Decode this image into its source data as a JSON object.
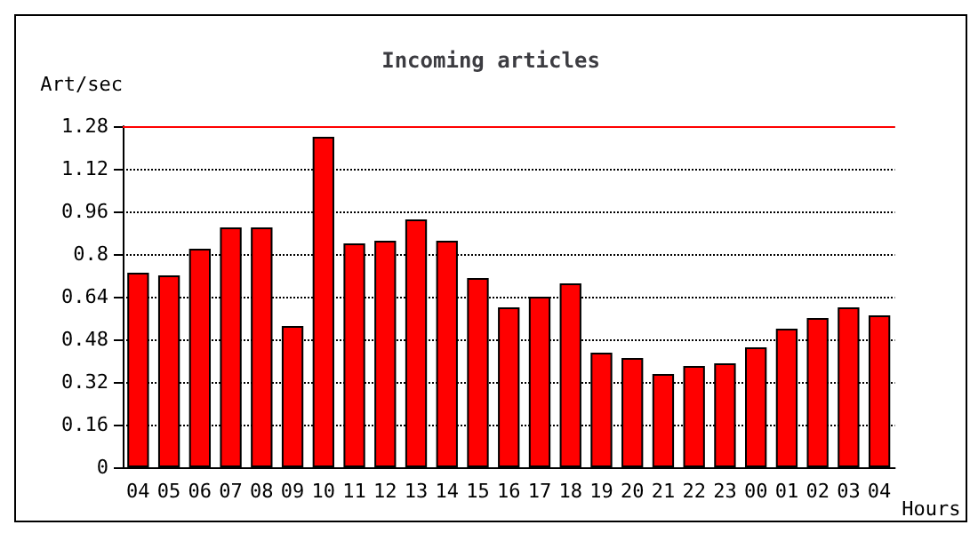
{
  "chart_data": {
    "type": "bar",
    "title": "Incoming articles",
    "ylabel": "Art/sec",
    "xlabel": "Hours",
    "categories": [
      "04",
      "05",
      "06",
      "07",
      "08",
      "09",
      "10",
      "11",
      "12",
      "13",
      "14",
      "15",
      "16",
      "17",
      "18",
      "19",
      "20",
      "21",
      "22",
      "23",
      "00",
      "01",
      "02",
      "03",
      "04"
    ],
    "values": [
      0.73,
      0.72,
      0.82,
      0.9,
      0.9,
      0.53,
      1.24,
      0.84,
      0.85,
      0.93,
      0.85,
      0.71,
      0.6,
      0.64,
      0.69,
      0.43,
      0.41,
      0.35,
      0.38,
      0.39,
      0.45,
      0.52,
      0.56,
      0.6,
      0.57
    ],
    "color": "#ff0000",
    "ylim": [
      0,
      1.28
    ],
    "yticks": [
      0,
      0.16,
      0.32,
      0.48,
      0.64,
      0.8,
      0.96,
      1.12,
      1.28
    ],
    "grid": "y",
    "ref_lines": [
      {
        "axis": "y",
        "value": 1.28,
        "color": "#ff0000"
      }
    ]
  }
}
